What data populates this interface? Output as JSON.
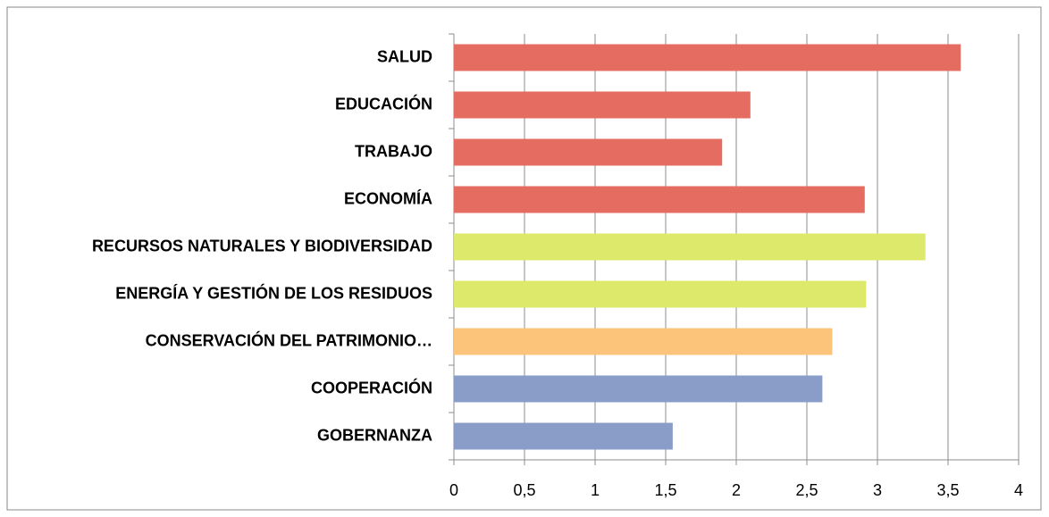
{
  "chart_data": {
    "type": "hbar",
    "categories": [
      "SALUD",
      "EDUCACIÓN",
      "TRABAJO",
      "ECONOMÍA",
      "RECURSOS NATURALES Y BIODIVERSIDAD",
      "ENERGÍA Y GESTIÓN DE LOS RESIDUOS",
      "CONSERVACIÓN DEL PATRIMONIO…",
      "COOPERACIÓN",
      "GOBERNANZA"
    ],
    "values": [
      3.59,
      2.1,
      1.9,
      2.91,
      3.34,
      2.92,
      2.68,
      2.61,
      1.55
    ],
    "colors": [
      "#e46c60",
      "#e46c60",
      "#e46c60",
      "#e46c60",
      "#dde96a",
      "#dde96a",
      "#fbc47a",
      "#8a9dc9",
      "#8a9dc9"
    ],
    "xlim": [
      0,
      4
    ],
    "xticks": [
      0,
      {
        "value": 0.5,
        "label": "0,5"
      },
      1,
      {
        "value": 1.5,
        "label": "1,5"
      },
      2,
      {
        "value": 2.5,
        "label": "2,5"
      },
      3,
      {
        "value": 3.5,
        "label": "3,5"
      },
      4
    ],
    "grid": true
  }
}
